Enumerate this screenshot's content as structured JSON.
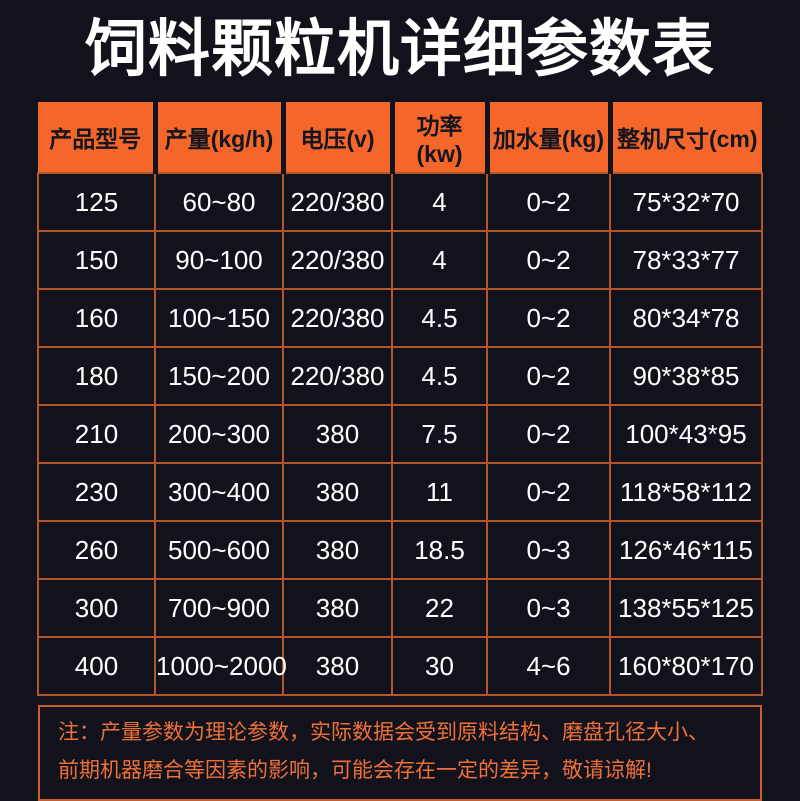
{
  "title": "饲料颗粒机详细参数表",
  "colors": {
    "background": "#12121d",
    "header_background": "#f4662a",
    "header_text": "#15151f",
    "grid_line": "#b4562a",
    "cell_text": "#ffffff",
    "note_text": "#ee7038",
    "note_border": "#c75e2e"
  },
  "table": {
    "columns": [
      "产品型号",
      "产量(kg/h)",
      "电压(v)",
      "功率(kw)",
      "加水量(kg)",
      "整机尺寸(cm)"
    ],
    "rows": [
      [
        "125",
        "60~80",
        "220/380",
        "4",
        "0~2",
        "75*32*70"
      ],
      [
        "150",
        "90~100",
        "220/380",
        "4",
        "0~2",
        "78*33*77"
      ],
      [
        "160",
        "100~150",
        "220/380",
        "4.5",
        "0~2",
        "80*34*78"
      ],
      [
        "180",
        "150~200",
        "220/380",
        "4.5",
        "0~2",
        "90*38*85"
      ],
      [
        "210",
        "200~300",
        "380",
        "7.5",
        "0~2",
        "100*43*95"
      ],
      [
        "230",
        "300~400",
        "380",
        "11",
        "0~2",
        "118*58*112"
      ],
      [
        "260",
        "500~600",
        "380",
        "18.5",
        "0~3",
        "126*46*115"
      ],
      [
        "300",
        "700~900",
        "380",
        "22",
        "0~3",
        "138*55*125"
      ],
      [
        "400",
        "1000~2000",
        "380",
        "30",
        "4~6",
        "160*80*170"
      ]
    ]
  },
  "note": {
    "lines": [
      "注：产量参数为理论参数，实际数据会受到原料结构、磨盘孔径大小、",
      "前期机器磨合等因素的影响，可能会存在一定的差异，敬请谅解!"
    ]
  }
}
